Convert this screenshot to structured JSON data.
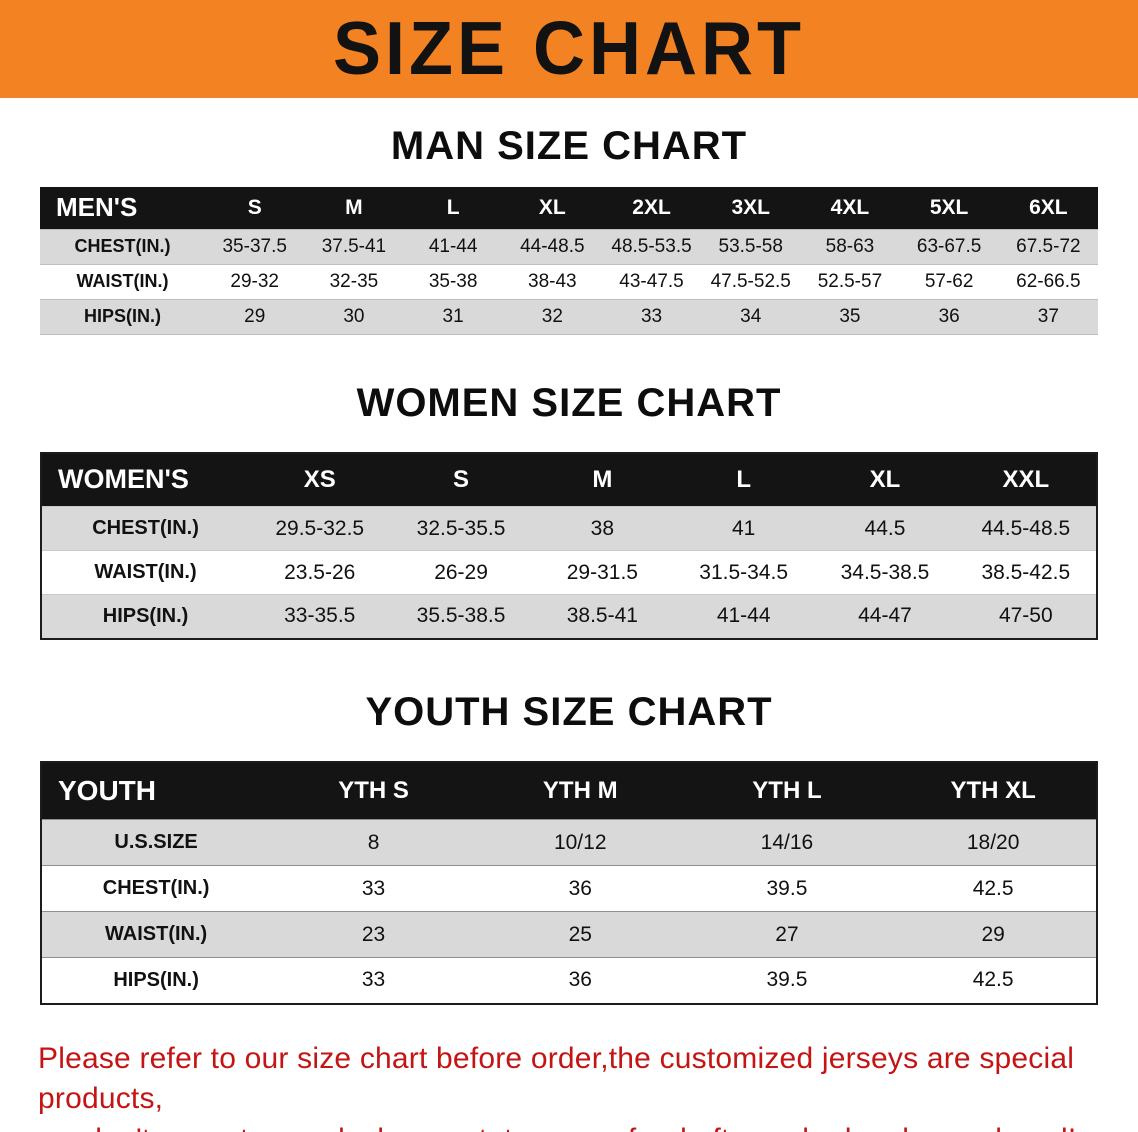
{
  "colors": {
    "banner-bg": "#f28222",
    "banner-text": "#121212",
    "footer-text": "#c41414"
  },
  "banner": {
    "title": "SIZE CHART"
  },
  "sections": [
    {
      "heading": "MAN SIZE CHART",
      "table": {
        "header": [
          "MEN'S",
          "S",
          "M",
          "L",
          "XL",
          "2XL",
          "3XL",
          "4XL",
          "5XL",
          "6XL"
        ],
        "rows": [
          [
            "CHEST(IN.)",
            "35-37.5",
            "37.5-41",
            "41-44",
            "44-48.5",
            "48.5-53.5",
            "53.5-58",
            "58-63",
            "63-67.5",
            "67.5-72"
          ],
          [
            "WAIST(IN.)",
            "29-32",
            "32-35",
            "35-38",
            "38-43",
            "43-47.5",
            "47.5-52.5",
            "52.5-57",
            "57-62",
            "62-66.5"
          ],
          [
            "HIPS(IN.)",
            "29",
            "30",
            "31",
            "32",
            "33",
            "34",
            "35",
            "36",
            "37"
          ]
        ]
      }
    },
    {
      "heading": "WOMEN SIZE CHART",
      "table": {
        "header": [
          "WOMEN'S",
          "XS",
          "S",
          "M",
          "L",
          "XL",
          "XXL"
        ],
        "rows": [
          [
            "CHEST(IN.)",
            "29.5-32.5",
            "32.5-35.5",
            "38",
            "41",
            "44.5",
            "44.5-48.5"
          ],
          [
            "WAIST(IN.)",
            "23.5-26",
            "26-29",
            "29-31.5",
            "31.5-34.5",
            "34.5-38.5",
            "38.5-42.5"
          ],
          [
            "HIPS(IN.)",
            "33-35.5",
            "35.5-38.5",
            "38.5-41",
            "41-44",
            "44-47",
            "47-50"
          ]
        ]
      }
    },
    {
      "heading": "YOUTH SIZE CHART",
      "table": {
        "header": [
          "YOUTH",
          "YTH S",
          "YTH M",
          "YTH L",
          "YTH XL"
        ],
        "rows": [
          [
            "U.S.SIZE",
            "8",
            "10/12",
            "14/16",
            "18/20"
          ],
          [
            "CHEST(IN.)",
            "33",
            "36",
            "39.5",
            "42.5"
          ],
          [
            "WAIST(IN.)",
            "23",
            "25",
            "27",
            "29"
          ],
          [
            "HIPS(IN.)",
            "33",
            "36",
            "39.5",
            "42.5"
          ]
        ]
      }
    }
  ],
  "footer": {
    "line1": "Please refer to our size chart before order,the customized jerseys are special products,",
    "line2": "we don't accept cancel, change, teturn or refund after order has been placed!"
  }
}
